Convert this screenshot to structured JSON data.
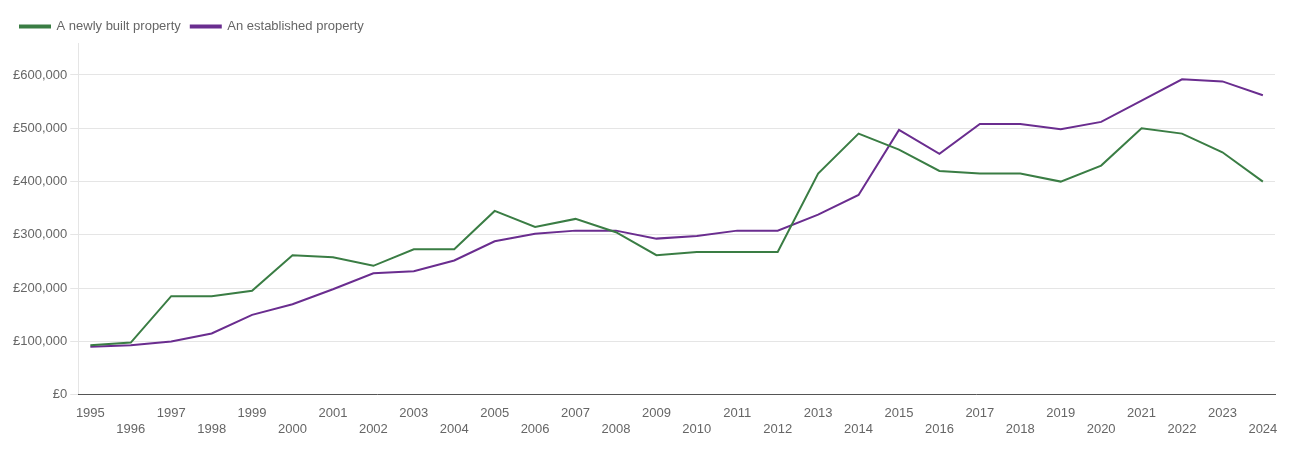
{
  "chart_data": {
    "type": "line",
    "x": [
      1995,
      1996,
      1997,
      1998,
      1999,
      2000,
      2001,
      2002,
      2003,
      2004,
      2005,
      2006,
      2007,
      2008,
      2009,
      2010,
      2011,
      2012,
      2013,
      2014,
      2015,
      2016,
      2017,
      2018,
      2019,
      2020,
      2021,
      2022,
      2023,
      2024
    ],
    "series": [
      {
        "name": "A newly built property",
        "color": "#3a7d44",
        "values": [
          93000,
          98000,
          185000,
          185000,
          195000,
          262000,
          258000,
          242000,
          273000,
          273000,
          345000,
          315000,
          330000,
          305000,
          262000,
          268000,
          268000,
          268000,
          415000,
          490000,
          460000,
          420000,
          415000,
          415000,
          400000,
          430000,
          500000,
          490000,
          455000,
          400000
        ]
      },
      {
        "name": "An established property",
        "color": "#6a2d8f",
        "values": [
          90000,
          93000,
          100000,
          115000,
          150000,
          170000,
          198000,
          228000,
          232000,
          252000,
          288000,
          302000,
          308000,
          308000,
          293000,
          298000,
          308000,
          308000,
          338000,
          375000,
          497000,
          452000,
          508000,
          508000,
          498000,
          512000,
          552000,
          592000,
          588000,
          562000
        ]
      }
    ],
    "xlim": [
      1994.7,
      2024.3
    ],
    "xticks": [
      1995,
      1996,
      1997,
      1998,
      1999,
      2000,
      2001,
      2002,
      2003,
      2004,
      2005,
      2006,
      2007,
      2008,
      2009,
      2010,
      2011,
      2012,
      2013,
      2014,
      2015,
      2016,
      2017,
      2018,
      2019,
      2020,
      2021,
      2022,
      2023,
      2024
    ],
    "ylim": [
      0,
      660000
    ],
    "yticks": [
      {
        "value": 0,
        "label": "£0"
      },
      {
        "value": 100000,
        "label": "£100,000"
      },
      {
        "value": 200000,
        "label": "£200,000"
      },
      {
        "value": 300000,
        "label": "£300,000"
      },
      {
        "value": 400000,
        "label": "£400,000"
      },
      {
        "value": 500000,
        "label": "£500,000"
      },
      {
        "value": 600000,
        "label": "£600,000"
      }
    ],
    "grid": true,
    "legend": "upper left"
  }
}
